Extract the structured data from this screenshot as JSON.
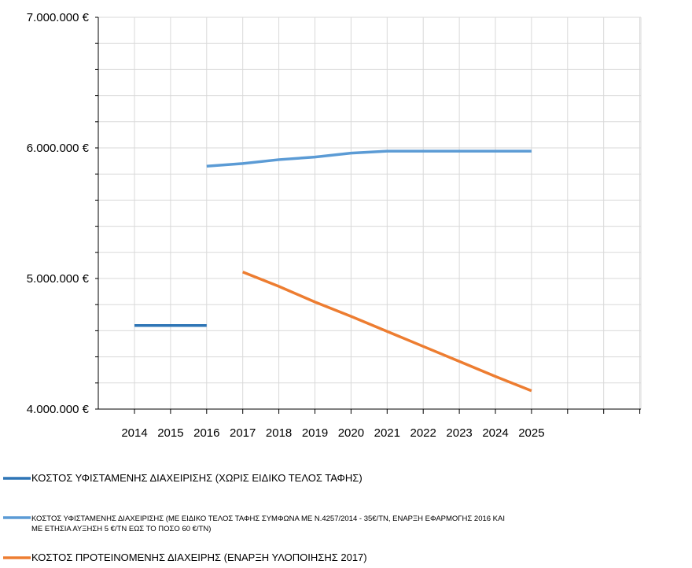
{
  "chart_data": {
    "type": "line",
    "x": [
      "2014",
      "2015",
      "2016",
      "2017",
      "2018",
      "2019",
      "2020",
      "2021",
      "2022",
      "2023",
      "2024",
      "2025"
    ],
    "ylim": [
      4000000,
      7000000
    ],
    "y_ticks": [
      4000000,
      5000000,
      6000000,
      7000000
    ],
    "y_tick_labels": [
      "4.000.000 €",
      "5.000.000 €",
      "6.000.000 €",
      "7.000.000 €"
    ],
    "grid": true,
    "legend_position": "bottom",
    "series": [
      {
        "name": "ΚΟΣΤΟΣ ΥΦΙΣΤΑΜΕΝΗΣ ΔΙΑΧΕΙΡΙΣΗΣ (ΧΩΡΙΣ ΕΙΔΙΚΟ ΤΕΛΟΣ ΤΑΦΗΣ)",
        "name_lines": [
          "ΚΟΣΤΟΣ ΥΦΙΣΤΑΜΕΝΗΣ ΔΙΑΧΕΙΡΙΣΗΣ (ΧΩΡΙΣ ΕΙΔΙΚΟ ΤΕΛΟΣ ΤΑΦΗΣ)"
        ],
        "color": "#2e75b6",
        "values": [
          4640000,
          4640000,
          4640000,
          null,
          null,
          null,
          null,
          null,
          null,
          null,
          null,
          null
        ]
      },
      {
        "name": "ΚΟΣΤΟΣ ΥΦΙΣΤΑΜΕΝΗΣ ΔΙΑΧΕΙΡΙΣΗΣ (ΜΕ ΕΙΔΙΚΟ ΤΕΛΟΣ ΤΑΦΗΣ ΣΥΜΦΩΝΑ ΜΕ Ν.4257/2014 - 35€/ΤΝ, ΕΝΑΡΞΗ ΕΦΑΡΜΟΓΗΣ 2016 ΚΑΙ ΜΕ ΕΤΗΣΙΑ ΑΥΞΗΣΗ 5 €/ΤΝ ΕΩΣ ΤΟ ΠΟΣΟ 60 €/ΤΝ)",
        "name_lines": [
          "ΚΟΣΤΟΣ ΥΦΙΣΤΑΜΕΝΗΣ ΔΙΑΧΕΙΡΙΣΗΣ (ΜΕ ΕΙΔΙΚΟ ΤΕΛΟΣ ΤΑΦΗΣ ΣΥΜΦΩΝΑ ΜΕ Ν.4257/2014 - 35€/ΤΝ, ΕΝΑΡΞΗ ΕΦΑΡΜΟΓΗΣ 2016 ΚΑΙ",
          "ΜΕ ΕΤΗΣΙΑ ΑΥΞΗΣΗ 5 €/ΤΝ ΕΩΣ ΤΟ ΠΟΣΟ 60 €/ΤΝ)"
        ],
        "color": "#5b9bd5",
        "values": [
          null,
          null,
          5860000,
          5880000,
          5910000,
          5930000,
          5960000,
          5975000,
          5975000,
          5975000,
          5975000,
          5975000
        ]
      },
      {
        "name": "ΚΟΣΤΟΣ ΠΡΟΤΕΙΝΟΜΕΝΗΣ ΔΙΑΧΕΙΡΗΣ (ΕΝΑΡΞΗ ΥΛΟΠΟΙΗΣΗΣ 2017)",
        "name_lines": [
          "ΚΟΣΤΟΣ ΠΡΟΤΕΙΝΟΜΕΝΗΣ ΔΙΑΧΕΙΡΗΣ (ΕΝΑΡΞΗ ΥΛΟΠΟΙΗΣΗΣ 2017)"
        ],
        "color": "#ed7d31",
        "values": [
          null,
          null,
          null,
          5050000,
          4940000,
          4820000,
          4710000,
          4595000,
          4480000,
          4365000,
          4250000,
          4140000
        ]
      }
    ]
  }
}
